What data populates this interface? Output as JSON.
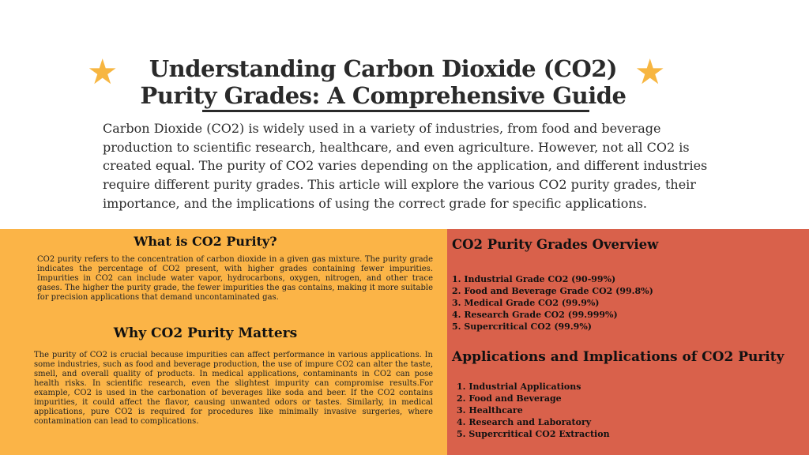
{
  "header": {
    "title_line1": "Understanding Carbon Dioxide (CO2)",
    "title_line2": "Purity Grades: A Comprehensive Guide",
    "intro": "Carbon Dioxide (CO2) is widely used in a variety of industries, from food and beverage production to scientific research, healthcare, and even agriculture. However, not all CO2 is created equal. The purity of CO2 varies depending on the application, and different industries require different purity grades. This article will explore the various CO2 purity grades, their importance, and the implications of using the correct grade for specific applications."
  },
  "left": {
    "what_heading": "What is CO2 Purity?",
    "what_text": "CO2 purity refers to the concentration of carbon dioxide in a given gas mixture. The purity grade indicates the percentage of CO2 present, with higher grades containing fewer impurities. Impurities in CO2 can include water vapor, hydrocarbons, oxygen, nitrogen, and other trace gases. The higher the purity grade, the fewer impurities the gas contains, making it more suitable for precision applications that demand uncontaminated gas.",
    "why_heading": "Why CO2 Purity Matters",
    "why_text": "The purity of CO2 is crucial because impurities can affect performance in various applications. In some industries, such as food and beverage production, the use of impure CO2 can alter the taste, smell, and overall quality of products. In medical applications, contaminants in CO2 can pose health risks. In scientific research, even the slightest impurity can compromise results.For example, CO2 is used in the carbonation of beverages like soda and beer. If the CO2 contains impurities, it could affect the flavor, causing unwanted odors or tastes. Similarly, in medical applications, pure CO2 is required for procedures like minimally invasive surgeries, where contamination can lead to complications."
  },
  "right": {
    "grades_heading": "CO2 Purity Grades Overview",
    "grades": [
      "1. Industrial Grade CO2 (90-99%)",
      "2. Food and Beverage Grade CO2 (99.8%)",
      "3. Medical Grade CO2 (99.9%)",
      "4. Research Grade CO2 (99.999%)",
      "5. Supercritical CO2 (99.9%)"
    ],
    "apps_heading": "Applications and Implications of CO2 Purity",
    "apps": [
      "1. Industrial Applications",
      "2. Food and Beverage",
      "3. Healthcare",
      "4. Research and Laboratory",
      "5. Supercritical CO2 Extraction"
    ]
  },
  "colors": {
    "left_panel": "#fbb447",
    "right_panel": "#d9614b",
    "star": "#f7b641"
  },
  "icons": [
    "star-icon",
    "star-icon"
  ]
}
